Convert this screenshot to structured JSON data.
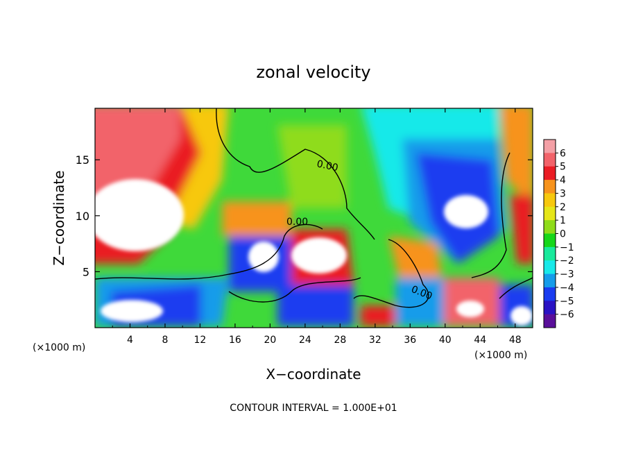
{
  "chart_data": {
    "type": "heatmap",
    "title": "zonal velocity",
    "xlabel": "X−coordinate",
    "ylabel": "Z−coordinate",
    "x_unit_note": "(×1000 m)",
    "z_unit_note": "(×1000 m)",
    "xlim": [
      0,
      50
    ],
    "ylim": [
      0,
      19.6
    ],
    "x_ticks": [
      4,
      8,
      12,
      16,
      20,
      24,
      28,
      32,
      36,
      40,
      44,
      48
    ],
    "y_ticks": [
      5,
      10,
      15
    ],
    "colorbar": {
      "ticks": [
        "6",
        "5",
        "4",
        "3",
        "2",
        "1",
        "0",
        "−1",
        "−2",
        "−3",
        "−4",
        "−5",
        "−6"
      ],
      "range": [
        -6,
        6
      ],
      "colors": [
        "#f4a0a6",
        "#f2636a",
        "#ea1c24",
        "#f7931d",
        "#f7c80e",
        "#e6e619",
        "#8fdc1a",
        "#16d71a",
        "#19ea9c",
        "#19e9e9",
        "#169cea",
        "#1a3cf0",
        "#2a13c4",
        "#5a0f9a"
      ]
    },
    "contour_labels": [
      "0.00",
      "0.00",
      "0.00"
    ],
    "footer": "CONTOUR INTERVAL = 1.000E+01",
    "grid": false,
    "legend": "colorbar right"
  }
}
